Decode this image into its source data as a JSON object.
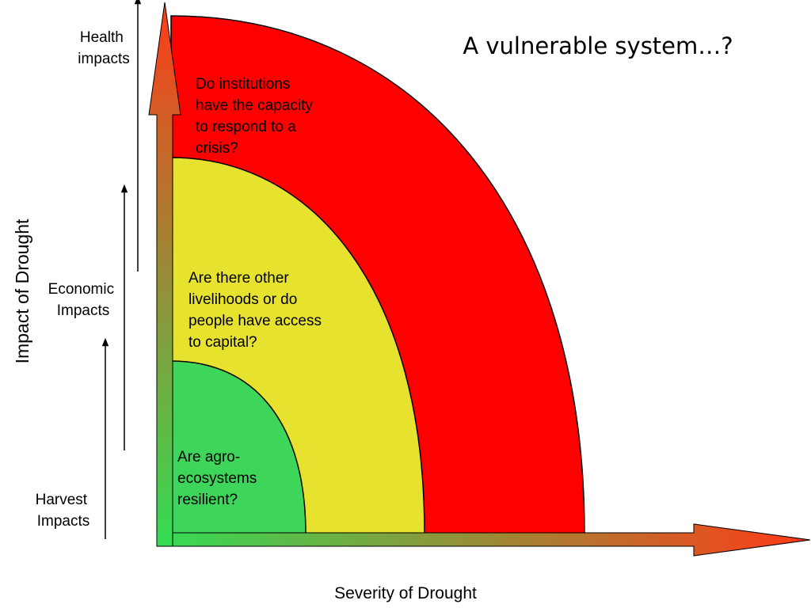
{
  "title": "A vulnerable system…?",
  "axes": {
    "x_label": "Severity of Drought",
    "y_label": "Impact of Drought"
  },
  "impact_levels": [
    {
      "lines": [
        "Harvest",
        "Impacts"
      ]
    },
    {
      "lines": [
        "Economic",
        "Impacts"
      ]
    },
    {
      "lines": [
        "Health",
        "impacts"
      ]
    }
  ],
  "zones": [
    {
      "lines": [
        "Are agro-",
        "ecosystems",
        "resilient?"
      ],
      "color": "#3DD65A"
    },
    {
      "lines": [
        "Are there other",
        "livelihoods or do",
        "people have access",
        "to capital?"
      ],
      "color": "#E6E22E"
    },
    {
      "lines": [
        "Do institutions",
        "have the capacity",
        "to respond to a",
        "crisis?"
      ],
      "color": "#FF0000"
    }
  ],
  "colors": {
    "arrow_start": "#33DD55",
    "arrow_end": "#FF3A18"
  }
}
